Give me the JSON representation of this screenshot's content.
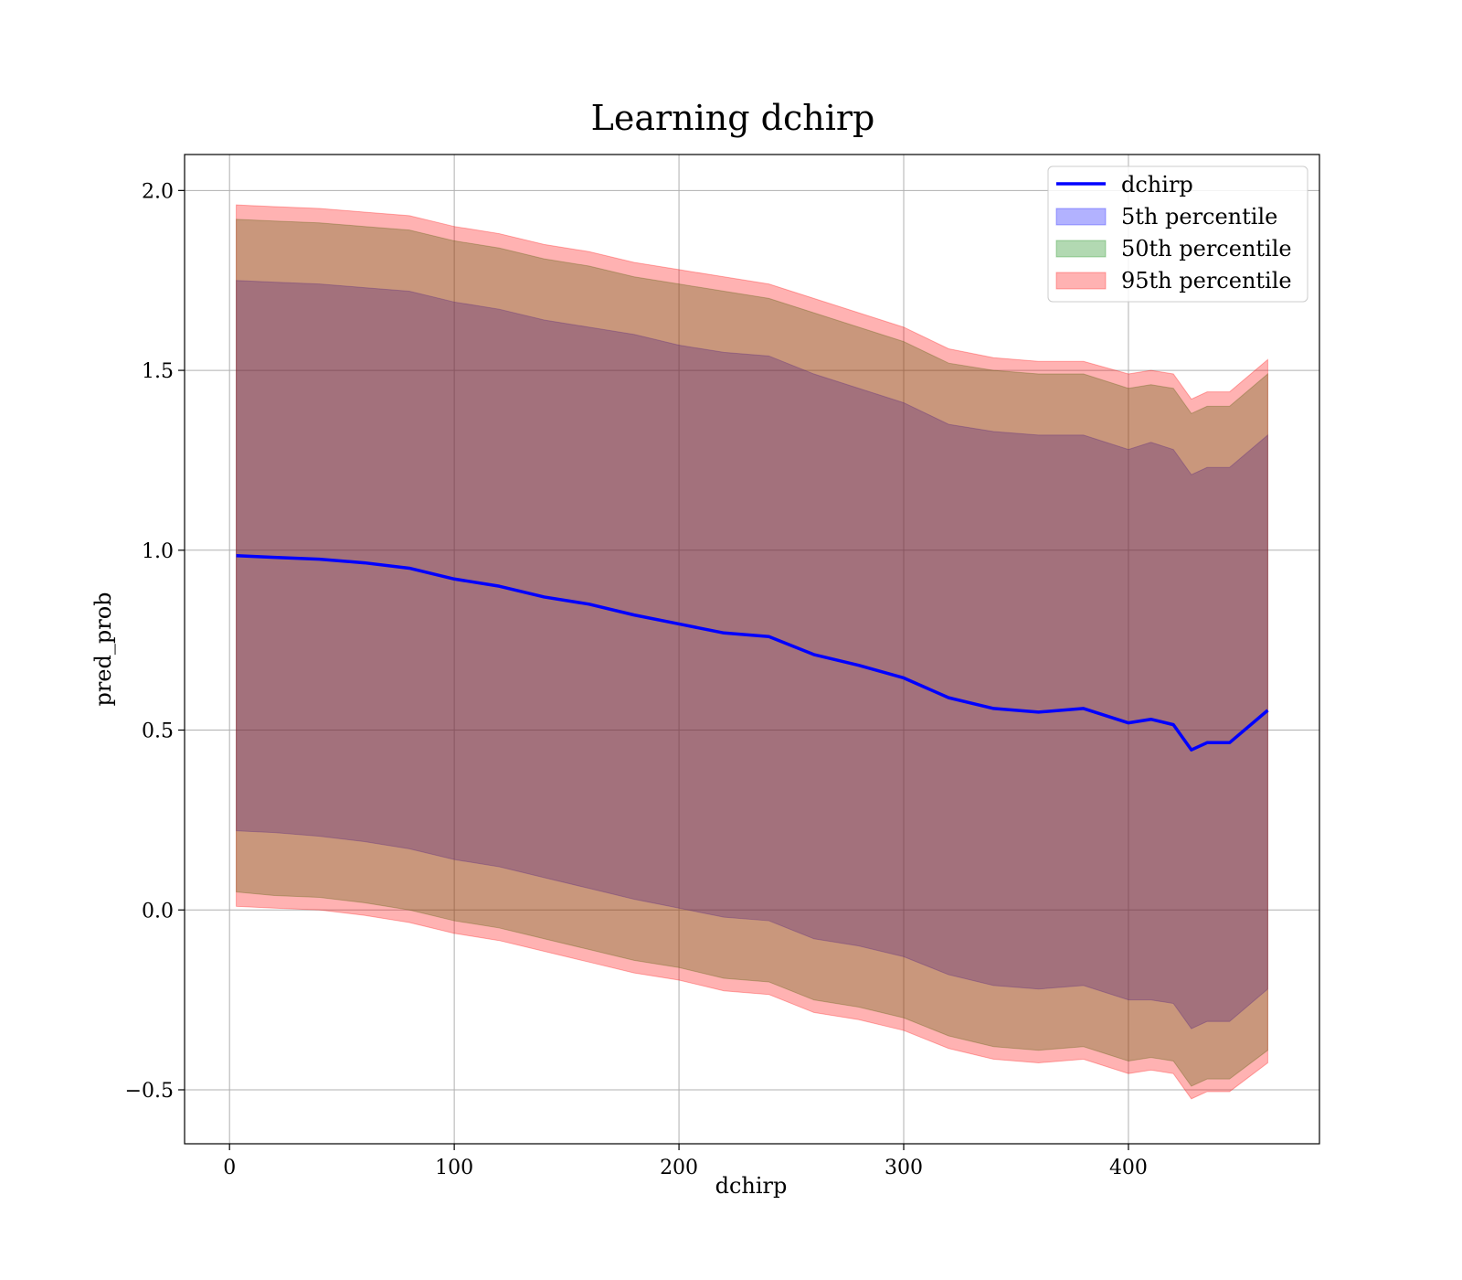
{
  "chart_data": {
    "type": "line",
    "title": "Learning dchirp",
    "xlabel": "dchirp",
    "ylabel": "pred_prob",
    "xlim": [
      -20,
      485
    ],
    "ylim": [
      -0.65,
      2.1
    ],
    "xticks": [
      0,
      100,
      200,
      300,
      400
    ],
    "xtick_labels": [
      "0",
      "100",
      "200",
      "300",
      "400"
    ],
    "yticks": [
      -0.5,
      0.0,
      0.5,
      1.0,
      1.5,
      2.0
    ],
    "ytick_labels": [
      "−0.5",
      "0.0",
      "0.5",
      "1.0",
      "1.5",
      "2.0"
    ],
    "grid": true,
    "legend_position": "top-right",
    "x": [
      3,
      20,
      40,
      60,
      80,
      100,
      120,
      140,
      160,
      180,
      200,
      220,
      240,
      260,
      280,
      300,
      320,
      340,
      360,
      380,
      400,
      410,
      420,
      428,
      435,
      445,
      462
    ],
    "series": [
      {
        "name": "dchirp",
        "kind": "line",
        "color": "#0000ff",
        "values": [
          0.985,
          0.98,
          0.975,
          0.965,
          0.95,
          0.92,
          0.9,
          0.87,
          0.85,
          0.82,
          0.795,
          0.77,
          0.76,
          0.71,
          0.68,
          0.645,
          0.59,
          0.56,
          0.55,
          0.56,
          0.52,
          0.53,
          0.515,
          0.445,
          0.465,
          0.465,
          0.555
        ]
      },
      {
        "name": "5th percentile",
        "kind": "band",
        "color": "#0000ff",
        "lower": [
          0.22,
          0.215,
          0.205,
          0.19,
          0.17,
          0.14,
          0.12,
          0.09,
          0.06,
          0.03,
          0.005,
          -0.02,
          -0.03,
          -0.08,
          -0.1,
          -0.13,
          -0.18,
          -0.21,
          -0.22,
          -0.21,
          -0.25,
          -0.25,
          -0.26,
          -0.33,
          -0.31,
          -0.31,
          -0.22
        ],
        "upper": [
          1.75,
          1.745,
          1.74,
          1.73,
          1.72,
          1.69,
          1.67,
          1.64,
          1.62,
          1.6,
          1.57,
          1.55,
          1.54,
          1.49,
          1.45,
          1.41,
          1.35,
          1.33,
          1.32,
          1.32,
          1.28,
          1.3,
          1.28,
          1.21,
          1.23,
          1.23,
          1.32
        ]
      },
      {
        "name": "50th percentile",
        "kind": "band",
        "color": "#008000",
        "lower": [
          0.05,
          0.04,
          0.035,
          0.02,
          0.0,
          -0.03,
          -0.05,
          -0.08,
          -0.11,
          -0.14,
          -0.16,
          -0.19,
          -0.2,
          -0.25,
          -0.27,
          -0.3,
          -0.35,
          -0.38,
          -0.39,
          -0.38,
          -0.42,
          -0.41,
          -0.42,
          -0.49,
          -0.47,
          -0.47,
          -0.39
        ],
        "upper": [
          1.92,
          1.915,
          1.91,
          1.9,
          1.89,
          1.86,
          1.84,
          1.81,
          1.79,
          1.76,
          1.74,
          1.72,
          1.7,
          1.66,
          1.62,
          1.58,
          1.52,
          1.5,
          1.49,
          1.49,
          1.45,
          1.46,
          1.45,
          1.38,
          1.4,
          1.4,
          1.49
        ]
      },
      {
        "name": "95th percentile",
        "kind": "band",
        "color": "#ff0000",
        "lower": [
          0.01,
          0.005,
          0.0,
          -0.015,
          -0.035,
          -0.065,
          -0.085,
          -0.115,
          -0.145,
          -0.175,
          -0.195,
          -0.225,
          -0.235,
          -0.285,
          -0.305,
          -0.335,
          -0.385,
          -0.415,
          -0.425,
          -0.415,
          -0.455,
          -0.445,
          -0.455,
          -0.525,
          -0.505,
          -0.505,
          -0.425
        ],
        "upper": [
          1.96,
          1.955,
          1.95,
          1.94,
          1.93,
          1.9,
          1.88,
          1.85,
          1.83,
          1.8,
          1.78,
          1.76,
          1.74,
          1.7,
          1.66,
          1.62,
          1.56,
          1.535,
          1.525,
          1.525,
          1.49,
          1.5,
          1.49,
          1.42,
          1.44,
          1.44,
          1.53
        ]
      }
    ]
  }
}
